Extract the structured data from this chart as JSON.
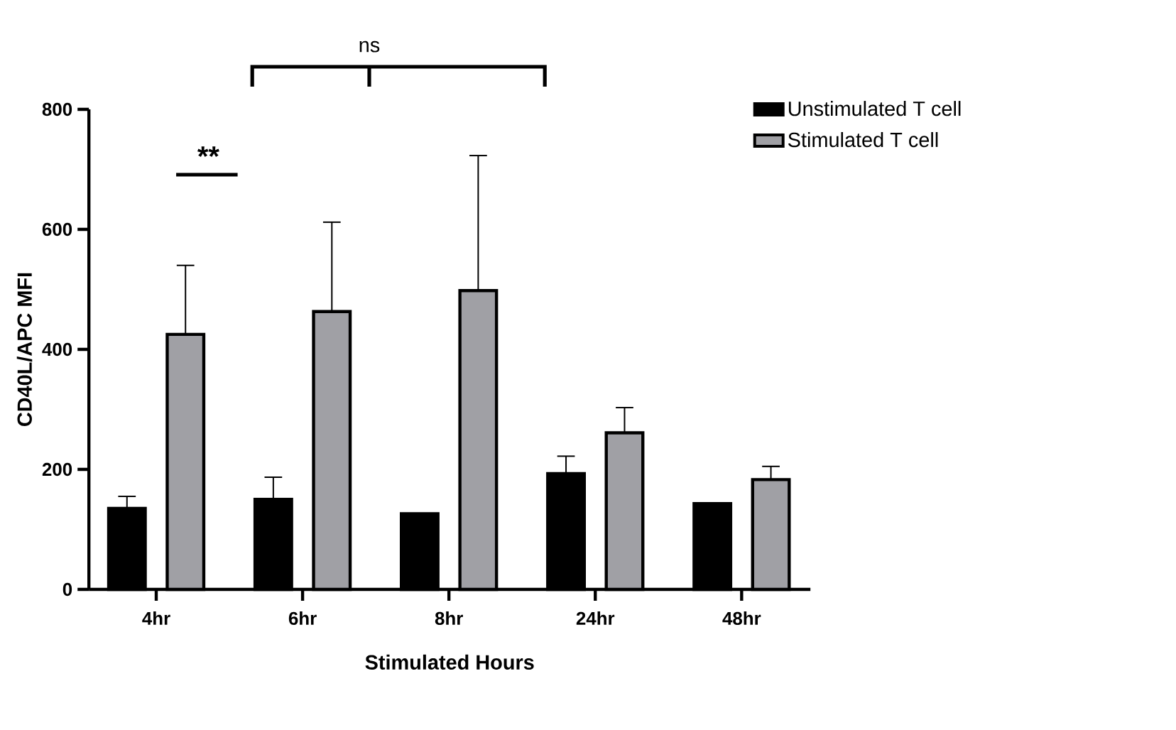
{
  "chart_data": {
    "type": "bar",
    "xlabel": "Stimulated Hours",
    "ylabel": "CD40L/APC MFI",
    "categories": [
      "4hr",
      "6hr",
      "8hr",
      "24hr",
      "48hr"
    ],
    "series": [
      {
        "name": "Unstimulated T cell",
        "color": "#000000",
        "values": [
          135,
          150,
          126,
          193,
          143
        ],
        "errors": [
          [
            135,
            155
          ],
          [
            150,
            187
          ],
          null,
          [
            193,
            222
          ],
          null
        ]
      },
      {
        "name": "Stimulated T cell",
        "color": "#a0a0a5",
        "values": [
          425,
          463,
          498,
          261,
          183
        ],
        "errors": [
          [
            425,
            540
          ],
          [
            463,
            612
          ],
          [
            498,
            723
          ],
          [
            261,
            303
          ],
          [
            183,
            205
          ]
        ]
      }
    ],
    "ylim": [
      0,
      800
    ],
    "yticks": [
      0,
      200,
      400,
      600,
      800
    ],
    "legend": "top right",
    "annotations": [
      "**",
      "ns"
    ]
  }
}
